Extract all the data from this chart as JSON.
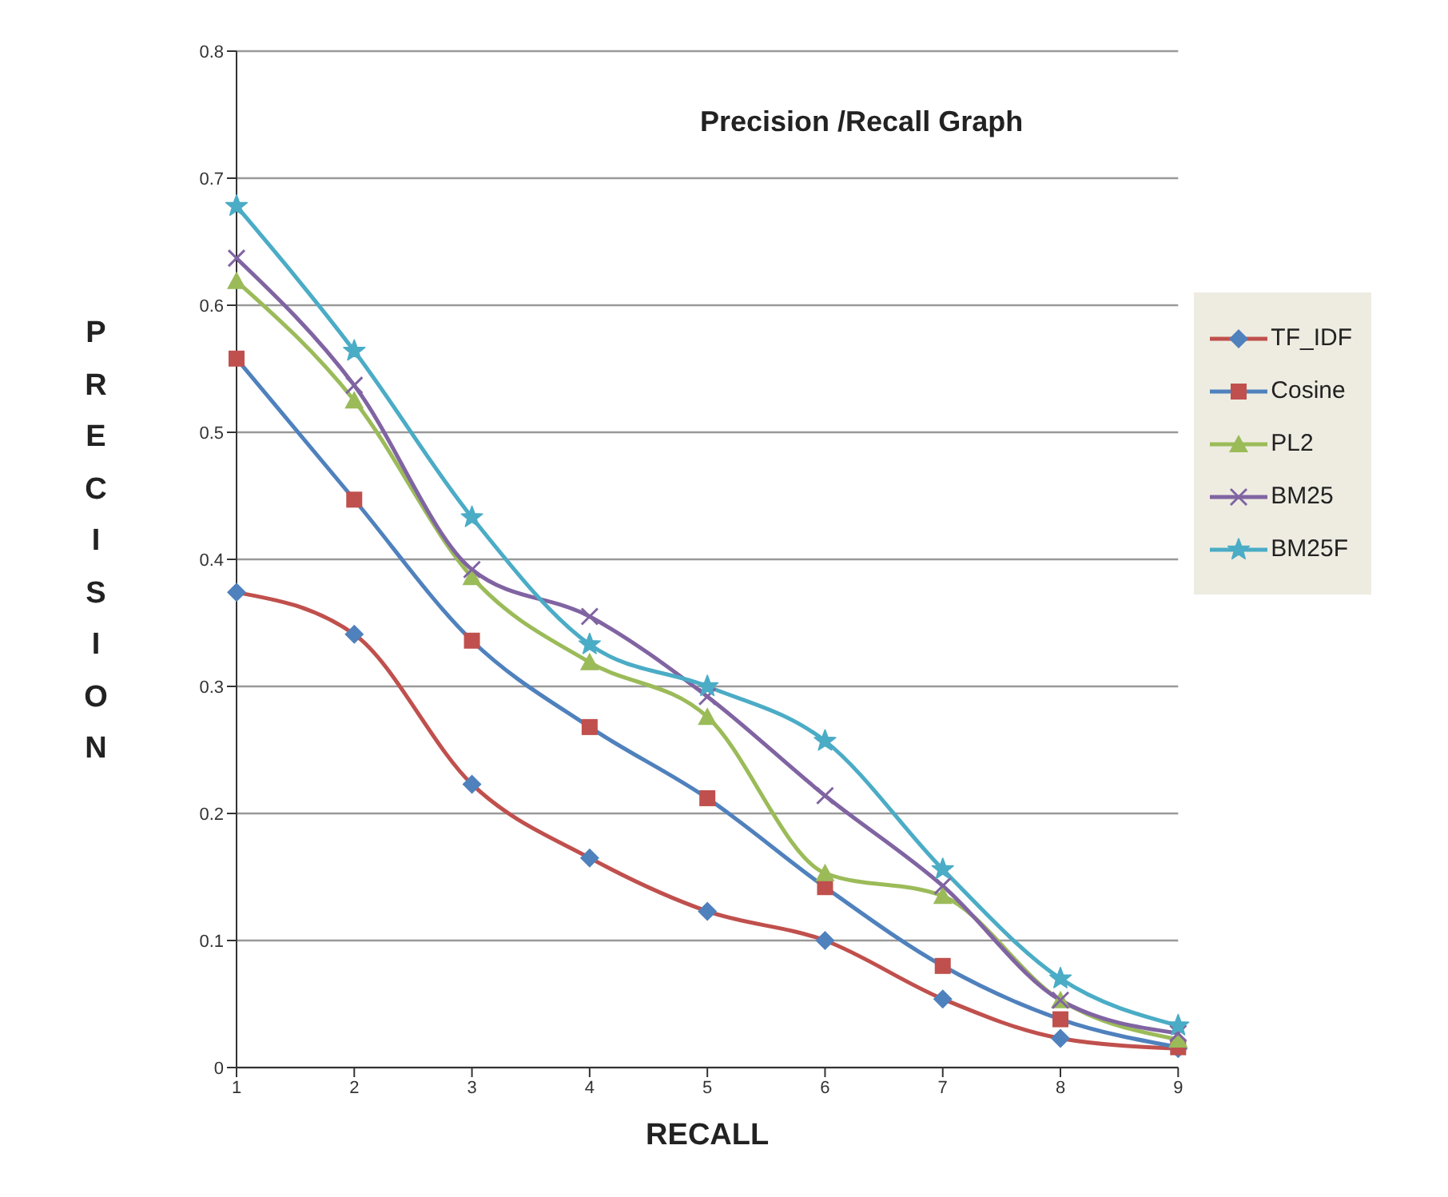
{
  "chart_data": {
    "type": "line",
    "title": "Precision /Recall Graph",
    "xlabel": "RECALL",
    "ylabel": "PRECISION",
    "categories": [
      "1",
      "2",
      "3",
      "4",
      "5",
      "6",
      "7",
      "8",
      "9"
    ],
    "series": [
      {
        "name": "TF_IDF",
        "color": "#c0504d",
        "marker": "diamond",
        "colors": [
          "#4f81bd",
          "#4f81bd",
          "#4f81bd",
          "#4f81bd",
          "#4f81bd",
          "#4f81bd",
          "#4f81bd",
          "#4f81bd",
          "#4f81bd"
        ],
        "values": [
          0.374,
          0.341,
          0.223,
          0.165,
          0.123,
          0.1,
          0.054,
          0.023,
          0.015
        ]
      },
      {
        "name": "Cosine",
        "color": "#4f81bd",
        "marker": "square",
        "colors": [
          "#c0504d",
          "#c0504d",
          "#c0504d",
          "#c0504d",
          "#c0504d",
          "#c0504d",
          "#c0504d",
          "#c0504d",
          "#c0504d"
        ],
        "values": [
          0.558,
          0.447,
          0.336,
          0.268,
          0.212,
          0.142,
          0.08,
          0.038,
          0.016
        ]
      },
      {
        "name": "PL2",
        "color": "#9bbb59",
        "marker": "triangle",
        "values": [
          0.619,
          0.525,
          0.386,
          0.319,
          0.276,
          0.153,
          0.135,
          0.053,
          0.022
        ]
      },
      {
        "name": "BM25",
        "color": "#8064a2",
        "marker": "cross",
        "values": [
          0.637,
          0.537,
          0.392,
          0.355,
          0.292,
          0.214,
          0.143,
          0.053,
          0.027
        ]
      },
      {
        "name": "BM25F",
        "color": "#4bacc6",
        "marker": "star",
        "values": [
          0.678,
          0.564,
          0.433,
          0.333,
          0.3,
          0.257,
          0.156,
          0.07,
          0.033
        ]
      }
    ],
    "ylim": [
      0,
      0.8
    ],
    "yticks": [
      0,
      0.1,
      0.2,
      0.3,
      0.4,
      0.5,
      0.6,
      0.7,
      0.8
    ],
    "grid": "y",
    "legend": "right"
  }
}
